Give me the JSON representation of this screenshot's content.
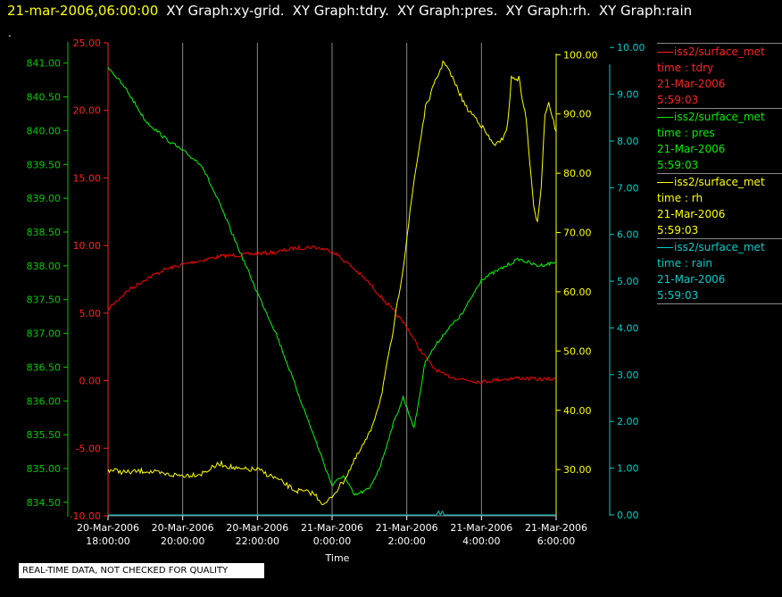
{
  "header": {
    "datetime": "21-mar-2006,06:00:00",
    "graphs": [
      "XY Graph:xy-grid.",
      "XY Graph:tdry.",
      "XY Graph:pres.",
      "XY Graph:rh.",
      "XY Graph:rain"
    ],
    "dot": "."
  },
  "notice": "REAL-TIME DATA, NOT CHECKED FOR QUALITY",
  "colors": {
    "tdry": "#ff0000",
    "pres": "#00ff00",
    "rh": "#ffff00",
    "rain": "#00cccc",
    "grid": "#888888",
    "background": "#000000",
    "text": "#ffffff"
  },
  "legend": [
    {
      "key": "tdry",
      "series": "iss2/surface_met",
      "field": "time : tdry",
      "date": "21-Mar-2006",
      "time": "5:59:03",
      "color": "#ff2020"
    },
    {
      "key": "pres",
      "series": "iss2/surface_met",
      "field": "time : pres",
      "date": "21-Mar-2006",
      "time": "5:59:03",
      "color": "#00ee00"
    },
    {
      "key": "rh",
      "series": "iss2/surface_met",
      "field": "time : rh",
      "date": "21-Mar-2006",
      "time": "5:59:03",
      "color": "#ffff00"
    },
    {
      "key": "rain",
      "series": "iss2/surface_met",
      "field": "time : rain",
      "date": "21-Mar-2006",
      "time": "5:59:03",
      "color": "#00cccc"
    }
  ],
  "chart_data": {
    "type": "line",
    "xlabel": "Time",
    "x_ticks": [
      {
        "hour": 18,
        "date": "20-Mar-2006",
        "time": "18:00:00"
      },
      {
        "hour": 20,
        "date": "20-Mar-2006",
        "time": "20:00:00"
      },
      {
        "hour": 22,
        "date": "20-Mar-2006",
        "time": "22:00:00"
      },
      {
        "hour": 24,
        "date": "21-Mar-2006",
        "time": "0:00:00"
      },
      {
        "hour": 26,
        "date": "21-Mar-2006",
        "time": "2:00:00"
      },
      {
        "hour": 28,
        "date": "21-Mar-2006",
        "time": "4:00:00"
      },
      {
        "hour": 30,
        "date": "21-Mar-2006",
        "time": "6:00:00"
      }
    ],
    "xlim": [
      18,
      30
    ],
    "grid": true,
    "legend_placement": "right",
    "axes": {
      "pres": {
        "side": "left-outer",
        "ylim": [
          834.3,
          841.3
        ],
        "ticks": [
          834.5,
          835.0,
          835.5,
          836.0,
          836.5,
          837.0,
          837.5,
          838.0,
          838.5,
          839.0,
          839.5,
          840.0,
          840.5,
          841.0
        ],
        "tick_labels": [
          "834.50",
          "835.00",
          "835.50",
          "836.00",
          "836.50",
          "837.00",
          "837.50",
          "838.00",
          "838.50",
          "839.00",
          "839.50",
          "840.00",
          "840.50",
          "841.00"
        ]
      },
      "tdry": {
        "side": "left-inner",
        "ylim": [
          -10,
          25
        ],
        "ticks": [
          -10,
          -5,
          0,
          5,
          10,
          15,
          20,
          25
        ],
        "tick_labels": [
          "-10.00",
          "-5.00",
          "0.00",
          "5.00",
          "10.00",
          "15.00",
          "20.00",
          "25.00"
        ]
      },
      "rh": {
        "side": "right-inner",
        "ylim": [
          22.2,
          102
        ],
        "ticks": [
          30,
          40,
          50,
          60,
          70,
          80,
          90,
          100
        ],
        "tick_labels": [
          "30.00",
          "40.00",
          "50.00",
          "60.00",
          "70.00",
          "80.00",
          "90.00",
          "100.00"
        ]
      },
      "rain": {
        "side": "right-outer",
        "ylim": [
          -0.02,
          10.1
        ],
        "ticks": [
          0,
          1,
          2,
          3,
          4,
          5,
          6,
          7,
          8,
          9,
          10
        ],
        "tick_labels": [
          "0.00",
          "1.00",
          "2.00",
          "3.00",
          "4.00",
          "5.00",
          "6.00",
          "7.00",
          "8.00",
          "9.00",
          "10.00"
        ]
      }
    },
    "series": [
      {
        "name": "time : tdry",
        "axis": "tdry",
        "x": [
          18.0,
          18.5,
          19.0,
          19.5,
          20.0,
          20.5,
          21.0,
          21.5,
          22.0,
          22.5,
          23.0,
          23.5,
          24.0,
          24.5,
          25.0,
          25.5,
          26.0,
          26.3,
          26.7,
          27.0,
          27.5,
          28.0,
          28.5,
          29.0,
          29.5,
          30.0
        ],
        "y": [
          5.3,
          6.6,
          7.5,
          8.2,
          8.6,
          8.9,
          9.2,
          9.3,
          9.4,
          9.5,
          9.8,
          9.9,
          9.6,
          8.5,
          7.2,
          5.6,
          4.0,
          2.5,
          1.0,
          0.4,
          0.1,
          -0.1,
          0.1,
          0.2,
          0.1,
          0.1
        ]
      },
      {
        "name": "time : pres",
        "axis": "pres",
        "x": [
          18.0,
          18.5,
          19.0,
          19.5,
          20.0,
          20.5,
          21.0,
          21.5,
          22.0,
          22.5,
          23.0,
          23.5,
          23.8,
          24.0,
          24.3,
          24.6,
          25.0,
          25.3,
          25.6,
          25.9,
          26.2,
          26.5,
          27.0,
          27.5,
          28.0,
          28.5,
          29.0,
          29.5,
          30.0
        ],
        "y": [
          840.95,
          840.6,
          840.15,
          839.9,
          839.7,
          839.5,
          838.9,
          838.25,
          837.6,
          837.0,
          836.25,
          835.5,
          835.05,
          834.75,
          834.9,
          834.6,
          834.7,
          835.05,
          835.6,
          836.05,
          835.6,
          836.6,
          837.0,
          837.3,
          837.8,
          837.95,
          838.1,
          838.0,
          838.05
        ]
      },
      {
        "name": "time : rh",
        "axis": "rh",
        "x": [
          18.0,
          18.5,
          19.0,
          19.5,
          20.0,
          20.5,
          21.0,
          21.5,
          22.0,
          22.5,
          23.0,
          23.5,
          23.8,
          24.0,
          24.3,
          24.6,
          25.0,
          25.3,
          25.6,
          25.9,
          26.2,
          26.5,
          26.8,
          27.0,
          27.3,
          27.6,
          27.9,
          28.0,
          28.3,
          28.5,
          28.7,
          28.8,
          29.0,
          29.2,
          29.4,
          29.5,
          29.6,
          29.7,
          29.8,
          30.0
        ],
        "y": [
          30.0,
          29.5,
          29.8,
          29.2,
          29.0,
          29.3,
          31.0,
          30.0,
          30.0,
          28.5,
          26.5,
          26.0,
          24.0,
          25.5,
          28.0,
          31.5,
          36.0,
          42.0,
          52.0,
          64.0,
          79.0,
          91.0,
          96.0,
          99.0,
          95.0,
          91.0,
          89.0,
          88.0,
          85.0,
          85.0,
          88.0,
          96.0,
          96.0,
          89.0,
          74.0,
          72.0,
          78.0,
          90.0,
          92.0,
          87.0
        ]
      },
      {
        "name": "time : rain",
        "axis": "rain",
        "x": [
          18.0,
          26.8,
          26.85,
          26.9,
          26.95,
          27.0,
          30.0
        ],
        "y": [
          0.0,
          0.0,
          0.08,
          0.0,
          0.08,
          0.0,
          0.0
        ]
      }
    ]
  }
}
